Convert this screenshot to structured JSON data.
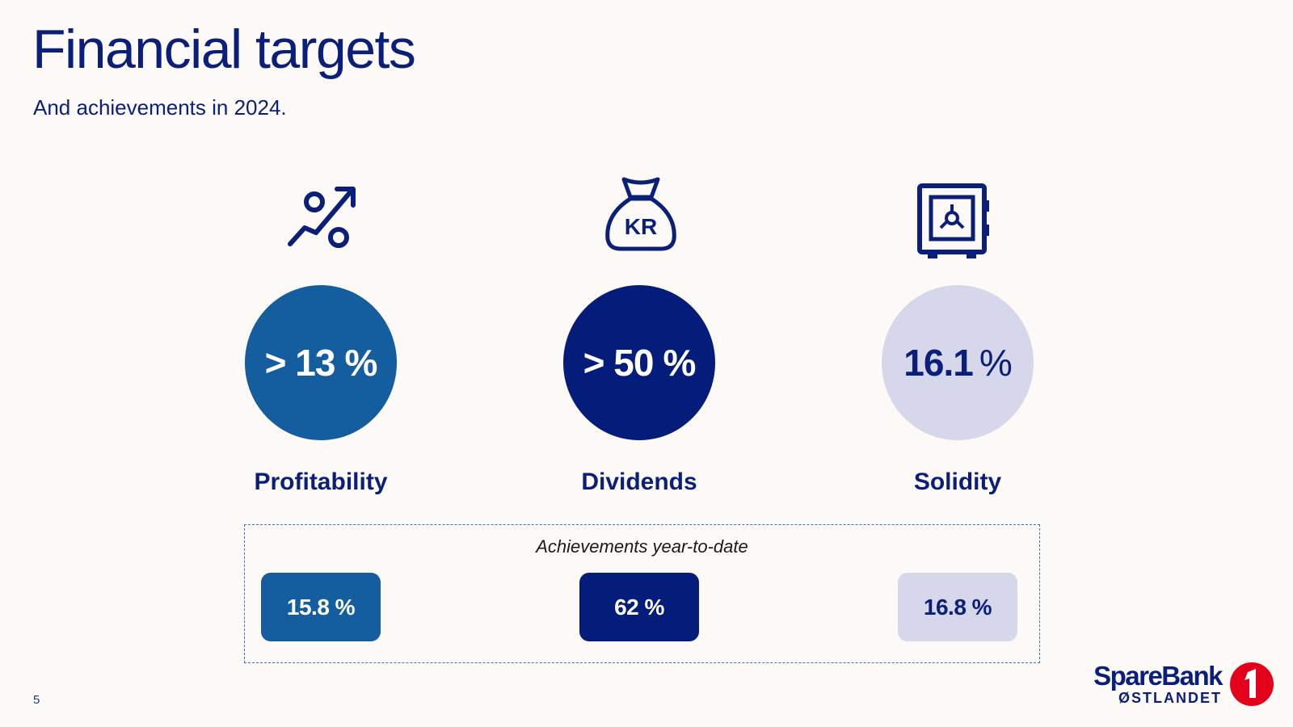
{
  "slide": {
    "title": "Financial targets",
    "subtitle": "And achievements in 2024.",
    "page_number": "5"
  },
  "targets": [
    {
      "icon": "percent-growth-icon",
      "value": "> 13",
      "unit": "%",
      "label": "Profitability",
      "color": "#145d9e"
    },
    {
      "icon": "money-bag-kr-icon",
      "value": "> 50",
      "unit": "%",
      "label": "Dividends",
      "color": "#041d7a",
      "icon_text": "KR"
    },
    {
      "icon": "safe-icon",
      "value": "16.1",
      "unit": "%",
      "label": "Solidity",
      "color": "#d7d7ec"
    }
  ],
  "achievements": {
    "title": "Achievements year-to-date",
    "values": [
      "15.8 %",
      "62 %",
      "16.8 %"
    ]
  },
  "logo": {
    "name": "SpareBank",
    "sub": "ØSTLANDET",
    "badge_color": "#e3001b"
  }
}
